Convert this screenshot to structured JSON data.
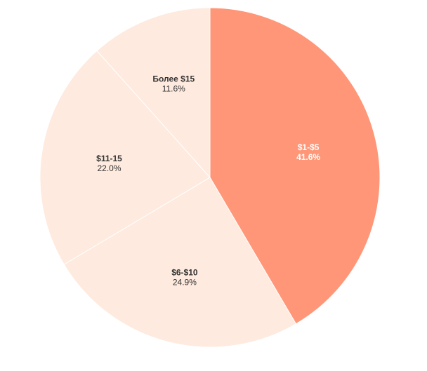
{
  "chart_data": {
    "type": "pie",
    "categories": [
      "$1-$5",
      "$6-$10",
      "$11-15",
      "Более $15"
    ],
    "values": [
      41.6,
      24.9,
      22.0,
      11.6
    ],
    "value_labels": [
      "41.6%",
      "24.9%",
      "22.0%",
      "11.6%"
    ],
    "colors": [
      "#FF9678",
      "#FEEADE",
      "#FEEADE",
      "#FEEADE"
    ],
    "label_colors": [
      "#ffffff",
      "#333333",
      "#333333",
      "#333333"
    ],
    "start_angle_deg": 0,
    "direction": "clockwise",
    "title": "",
    "legend": "none"
  }
}
